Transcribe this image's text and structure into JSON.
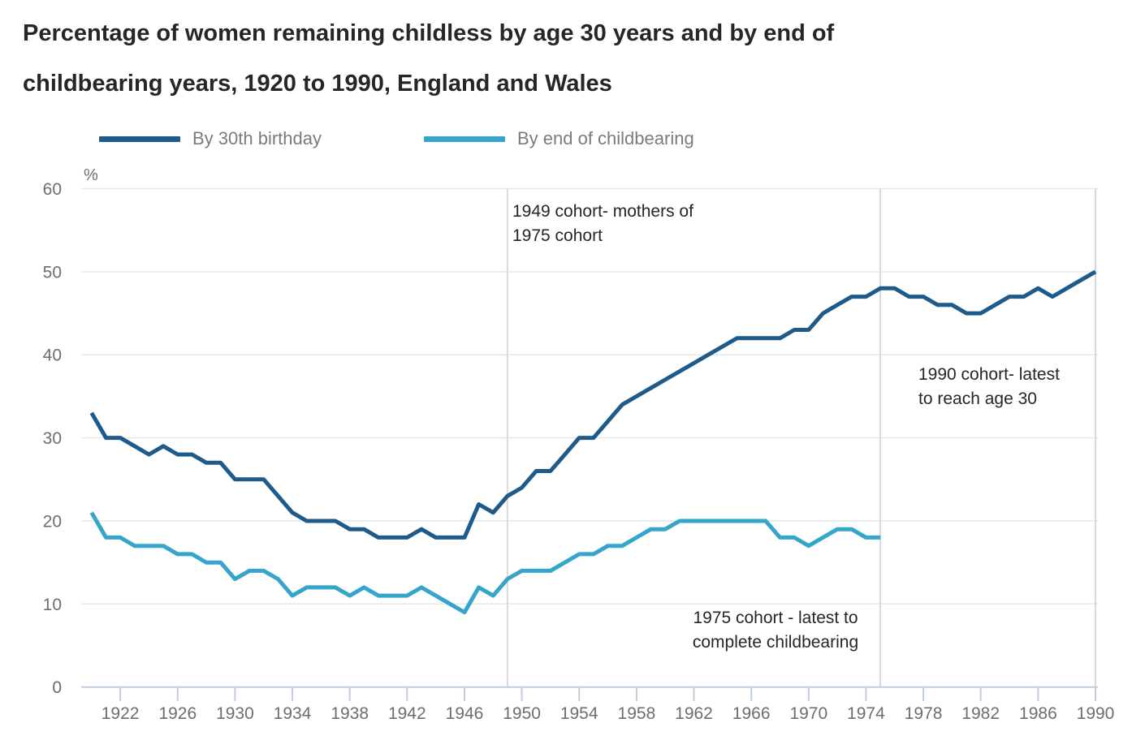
{
  "title": {
    "line1": "Percentage of women remaining childless by age 30 years and by end of",
    "line2": "childbearing years, 1920 to 1990, England and Wales"
  },
  "legend": [
    {
      "label": "By 30th birthday",
      "color": "#1f5b8a"
    },
    {
      "label": "By end of childbearing",
      "color": "#36a5cb"
    }
  ],
  "chart_data": {
    "type": "line",
    "title": "Percentage of women remaining childless by age 30 years and by end of childbearing years, 1920 to 1990, England and Wales",
    "unit_label": "%",
    "xlabel": "",
    "ylabel": "%",
    "xlim": [
      1920,
      1990
    ],
    "ylim": [
      0,
      60
    ],
    "grid": "horizontal",
    "legend_position": "top",
    "xticks": [
      1922,
      1926,
      1930,
      1934,
      1938,
      1942,
      1946,
      1950,
      1954,
      1958,
      1962,
      1966,
      1970,
      1974,
      1978,
      1982,
      1986,
      1990
    ],
    "yticks": [
      0,
      10,
      20,
      30,
      40,
      50,
      60
    ],
    "vertical_marker_years": [
      1949,
      1975,
      1990
    ],
    "series": [
      {
        "name": "By 30th birthday",
        "color": "#1f5b8a",
        "start_year": 1920,
        "values": [
          33,
          30,
          30,
          29,
          28,
          29,
          28,
          28,
          27,
          27,
          25,
          25,
          25,
          23,
          21,
          20,
          20,
          20,
          19,
          19,
          18,
          18,
          18,
          19,
          18,
          18,
          18,
          22,
          21,
          23,
          24,
          26,
          26,
          28,
          30,
          30,
          32,
          34,
          35,
          36,
          37,
          38,
          39,
          40,
          41,
          42,
          42,
          42,
          42,
          43,
          43,
          45,
          46,
          47,
          47,
          48,
          48,
          47,
          47,
          46,
          46,
          45,
          45,
          46,
          47,
          47,
          48,
          47,
          48,
          49,
          50
        ]
      },
      {
        "name": "By end of childbearing",
        "color": "#36a5cb",
        "start_year": 1920,
        "values": [
          21,
          18,
          18,
          17,
          17,
          17,
          16,
          16,
          15,
          15,
          13,
          14,
          14,
          13,
          11,
          12,
          12,
          12,
          11,
          12,
          11,
          11,
          11,
          12,
          11,
          10,
          9,
          12,
          11,
          13,
          14,
          14,
          14,
          15,
          16,
          16,
          17,
          17,
          18,
          19,
          19,
          20,
          20,
          20,
          20,
          20,
          20,
          20,
          18,
          18,
          17,
          18,
          19,
          19,
          18,
          18
        ]
      }
    ],
    "annotations": [
      {
        "lines": [
          "1949 cohort- mothers of",
          "1975 cohort"
        ]
      },
      {
        "lines": [
          "1990 cohort- latest",
          "to reach age 30"
        ]
      },
      {
        "lines": [
          "1975 cohort - latest to",
          "complete childbearing"
        ]
      }
    ]
  },
  "colors": {
    "grid": "#e7e7e7",
    "marker_line": "#d8d8d8",
    "axis": "#c0cdde",
    "tick_text": "#6e6e6e",
    "annotation_text": "#262626",
    "title_text": "#262626",
    "legend_text": "#7b7b7b"
  }
}
